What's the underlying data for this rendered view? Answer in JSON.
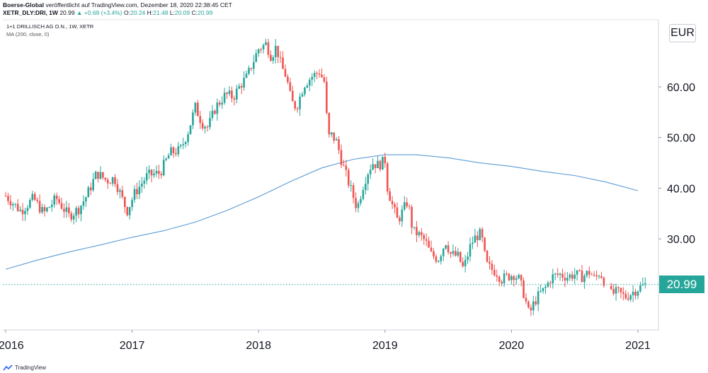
{
  "header": {
    "publisher": "Boerse-Global",
    "published_text": "veröffentlicht auf TradingView.com, Dezember 18, 2020 22:38:45 CET",
    "symbol": "XETR_DLY:DRI, 1W",
    "last": "20.99",
    "change": "+0.69 (+3.4%)",
    "o_label": "O:",
    "o_value": "20.24",
    "h_label": "H:",
    "h_value": "21.48",
    "l_label": "L:",
    "l_value": "20.09",
    "c_label": "C:",
    "c_value": "20.99"
  },
  "legend": {
    "instrument": "1+1 DRILLISCH AG O.N., 1W, XETR",
    "indicator": "MA (200, close, 0)"
  },
  "currency": "EUR",
  "price_tag": "20.99",
  "footer": {
    "brand": "TradingView"
  },
  "colors": {
    "up": "#26a69a",
    "down": "#ef5350",
    "ma": "#5b9bd5",
    "last_line": "#26a69a"
  },
  "chart_data": {
    "type": "candlestick",
    "title": "1+1 DRILLISCH AG O.N., 1W, XETR",
    "interval": "1W",
    "currency": "EUR",
    "ylim": [
      11,
      73
    ],
    "y_ticks": [
      {
        "label": "30.00",
        "value": 30
      },
      {
        "label": "40.00",
        "value": 40
      },
      {
        "label": "50.00",
        "value": 50
      },
      {
        "label": "60.00",
        "value": 60
      }
    ],
    "x_ticks": [
      {
        "label": "2016",
        "value": 2016.0
      },
      {
        "label": "2017",
        "value": 2017.0
      },
      {
        "label": "2018",
        "value": 2018.0
      },
      {
        "label": "2019",
        "value": 2019.0
      },
      {
        "label": "2020",
        "value": 2020.0
      },
      {
        "label": "2021",
        "value": 2021.0
      }
    ],
    "x_range": [
      2016.0,
      2021.2
    ],
    "last_price": 20.99,
    "grid": false,
    "close_path": [
      [
        2016.0,
        38.5
      ],
      [
        2016.12,
        35.5
      ],
      [
        2016.22,
        38.0
      ],
      [
        2016.3,
        35.0
      ],
      [
        2016.4,
        38.0
      ],
      [
        2016.5,
        34.5
      ],
      [
        2016.58,
        36.0
      ],
      [
        2016.64,
        38.5
      ],
      [
        2016.72,
        43.0
      ],
      [
        2016.8,
        41.5
      ],
      [
        2016.86,
        42.0
      ],
      [
        2016.92,
        38.0
      ],
      [
        2016.96,
        35.5
      ],
      [
        2017.02,
        39.0
      ],
      [
        2017.12,
        42.5
      ],
      [
        2017.22,
        43.0
      ],
      [
        2017.3,
        47.0
      ],
      [
        2017.38,
        47.5
      ],
      [
        2017.44,
        51.0
      ],
      [
        2017.5,
        56.0
      ],
      [
        2017.55,
        53.0
      ],
      [
        2017.6,
        52.0
      ],
      [
        2017.66,
        56.0
      ],
      [
        2017.74,
        58.5
      ],
      [
        2017.8,
        58.0
      ],
      [
        2017.86,
        60.5
      ],
      [
        2017.91,
        62.0
      ],
      [
        2017.94,
        64.0
      ],
      [
        2018.0,
        67.5
      ],
      [
        2018.06,
        68.5
      ],
      [
        2018.1,
        66.0
      ],
      [
        2018.14,
        68.0
      ],
      [
        2018.18,
        64.0
      ],
      [
        2018.22,
        62.0
      ],
      [
        2018.26,
        57.0
      ],
      [
        2018.3,
        56.0
      ],
      [
        2018.36,
        60.5
      ],
      [
        2018.42,
        62.0
      ],
      [
        2018.48,
        63.0
      ],
      [
        2018.52,
        61.0
      ],
      [
        2018.55,
        50.0
      ],
      [
        2018.58,
        50.5
      ],
      [
        2018.62,
        49.0
      ],
      [
        2018.66,
        45.0
      ],
      [
        2018.7,
        42.0
      ],
      [
        2018.74,
        39.0
      ],
      [
        2018.78,
        36.0
      ],
      [
        2018.82,
        40.0
      ],
      [
        2018.86,
        43.0
      ],
      [
        2018.9,
        45.0
      ],
      [
        2018.95,
        44.5
      ],
      [
        2019.0,
        45.5
      ],
      [
        2019.02,
        40.0
      ],
      [
        2019.06,
        36.5
      ],
      [
        2019.1,
        33.5
      ],
      [
        2019.14,
        35.5
      ],
      [
        2019.18,
        37.5
      ],
      [
        2019.22,
        31.5
      ],
      [
        2019.26,
        31.0
      ],
      [
        2019.32,
        29.5
      ],
      [
        2019.36,
        27.0
      ],
      [
        2019.42,
        26.0
      ],
      [
        2019.48,
        29.5
      ],
      [
        2019.52,
        27.0
      ],
      [
        2019.58,
        26.5
      ],
      [
        2019.62,
        24.0
      ],
      [
        2019.68,
        29.0
      ],
      [
        2019.72,
        30.5
      ],
      [
        2019.76,
        31.0
      ],
      [
        2019.8,
        25.0
      ],
      [
        2019.84,
        24.0
      ],
      [
        2019.88,
        23.5
      ],
      [
        2019.92,
        22.0
      ],
      [
        2019.96,
        22.5
      ],
      [
        2020.02,
        23.0
      ],
      [
        2020.06,
        22.0
      ],
      [
        2020.1,
        19.0
      ],
      [
        2020.14,
        15.0
      ],
      [
        2020.18,
        17.5
      ],
      [
        2020.22,
        19.0
      ],
      [
        2020.26,
        20.0
      ],
      [
        2020.32,
        22.5
      ],
      [
        2020.38,
        23.0
      ],
      [
        2020.44,
        22.5
      ],
      [
        2020.5,
        23.0
      ],
      [
        2020.56,
        22.5
      ],
      [
        2020.62,
        23.5
      ],
      [
        2020.66,
        22.0
      ],
      [
        2020.7,
        23.5
      ],
      [
        2020.78,
        19.0
      ],
      [
        2020.84,
        19.5
      ],
      [
        2020.9,
        18.5
      ],
      [
        2020.96,
        19.5
      ],
      [
        2021.02,
        20.5
      ],
      [
        2021.06,
        20.99
      ]
    ],
    "gap_after_x": 2020.74,
    "ma200": [
      [
        2016.0,
        24.0
      ],
      [
        2016.25,
        25.8
      ],
      [
        2016.5,
        27.4
      ],
      [
        2016.75,
        28.8
      ],
      [
        2017.0,
        30.3
      ],
      [
        2017.25,
        31.6
      ],
      [
        2017.5,
        33.3
      ],
      [
        2017.75,
        35.6
      ],
      [
        2018.0,
        38.3
      ],
      [
        2018.25,
        41.3
      ],
      [
        2018.5,
        44.0
      ],
      [
        2018.75,
        45.7
      ],
      [
        2019.0,
        46.6
      ],
      [
        2019.25,
        46.6
      ],
      [
        2019.5,
        46.0
      ],
      [
        2019.75,
        45.0
      ],
      [
        2020.0,
        44.3
      ],
      [
        2020.25,
        43.3
      ],
      [
        2020.5,
        42.5
      ],
      [
        2020.75,
        41.2
      ],
      [
        2021.0,
        39.5
      ]
    ]
  }
}
